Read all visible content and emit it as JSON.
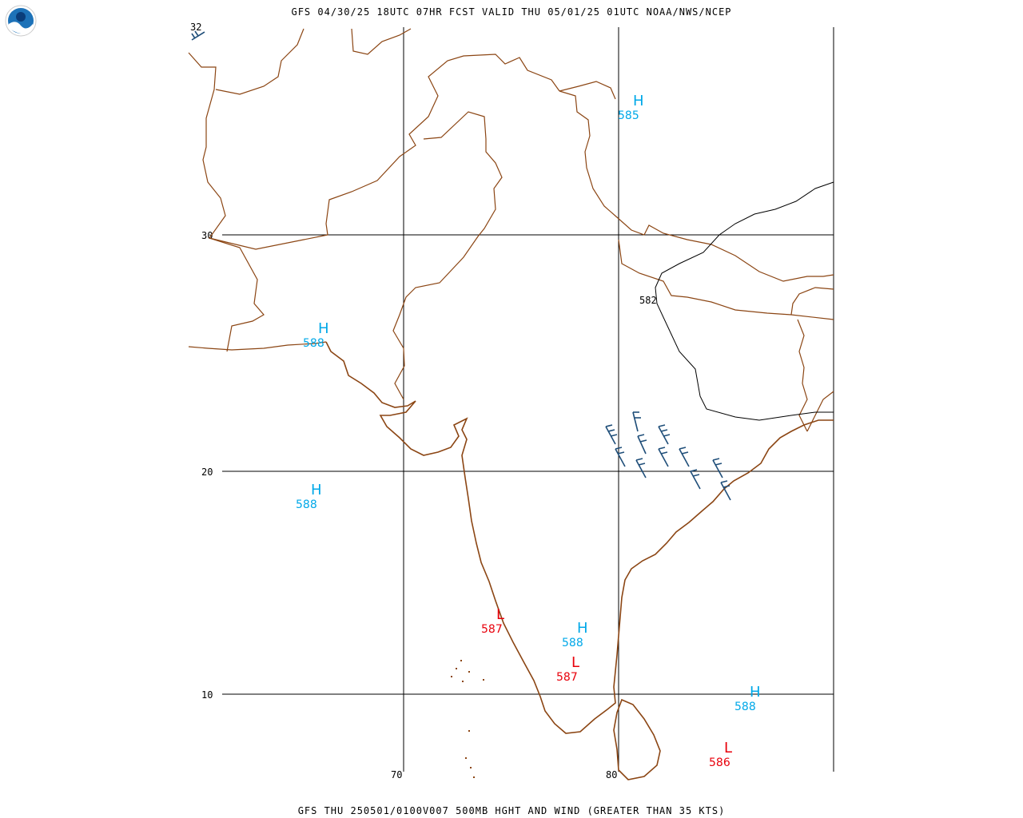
{
  "header": {
    "title": "GFS 04/30/25 18UTC 07HR FCST VALID THU 05/01/25 01UTC NOAA/NWS/NCEP",
    "logo_text": "NOAA",
    "logo_icon": "noaa-logo-icon"
  },
  "footer": {
    "title": "GFS THU 250501/0100V007 500MB HGHT AND WIND (GREATER THAN 35 KTS)"
  },
  "grid": {
    "lat_labels": [
      "30",
      "20",
      "10"
    ],
    "lon_labels": [
      "70",
      "80"
    ],
    "corner_label": "32"
  },
  "contour": {
    "label": "582",
    "color": "#000000"
  },
  "colors": {
    "border": "#8B4513",
    "high": "#00A8E8",
    "low": "#E8000B",
    "barb": "#1F4E79",
    "grid": "#000000"
  },
  "centers": [
    {
      "type": "H",
      "value": "585"
    },
    {
      "type": "H",
      "value": "588"
    },
    {
      "type": "H",
      "value": "588"
    },
    {
      "type": "H",
      "value": "588"
    },
    {
      "type": "L",
      "value": "587"
    },
    {
      "type": "L",
      "value": "587"
    },
    {
      "type": "H",
      "value": "588"
    },
    {
      "type": "L",
      "value": "586"
    }
  ]
}
